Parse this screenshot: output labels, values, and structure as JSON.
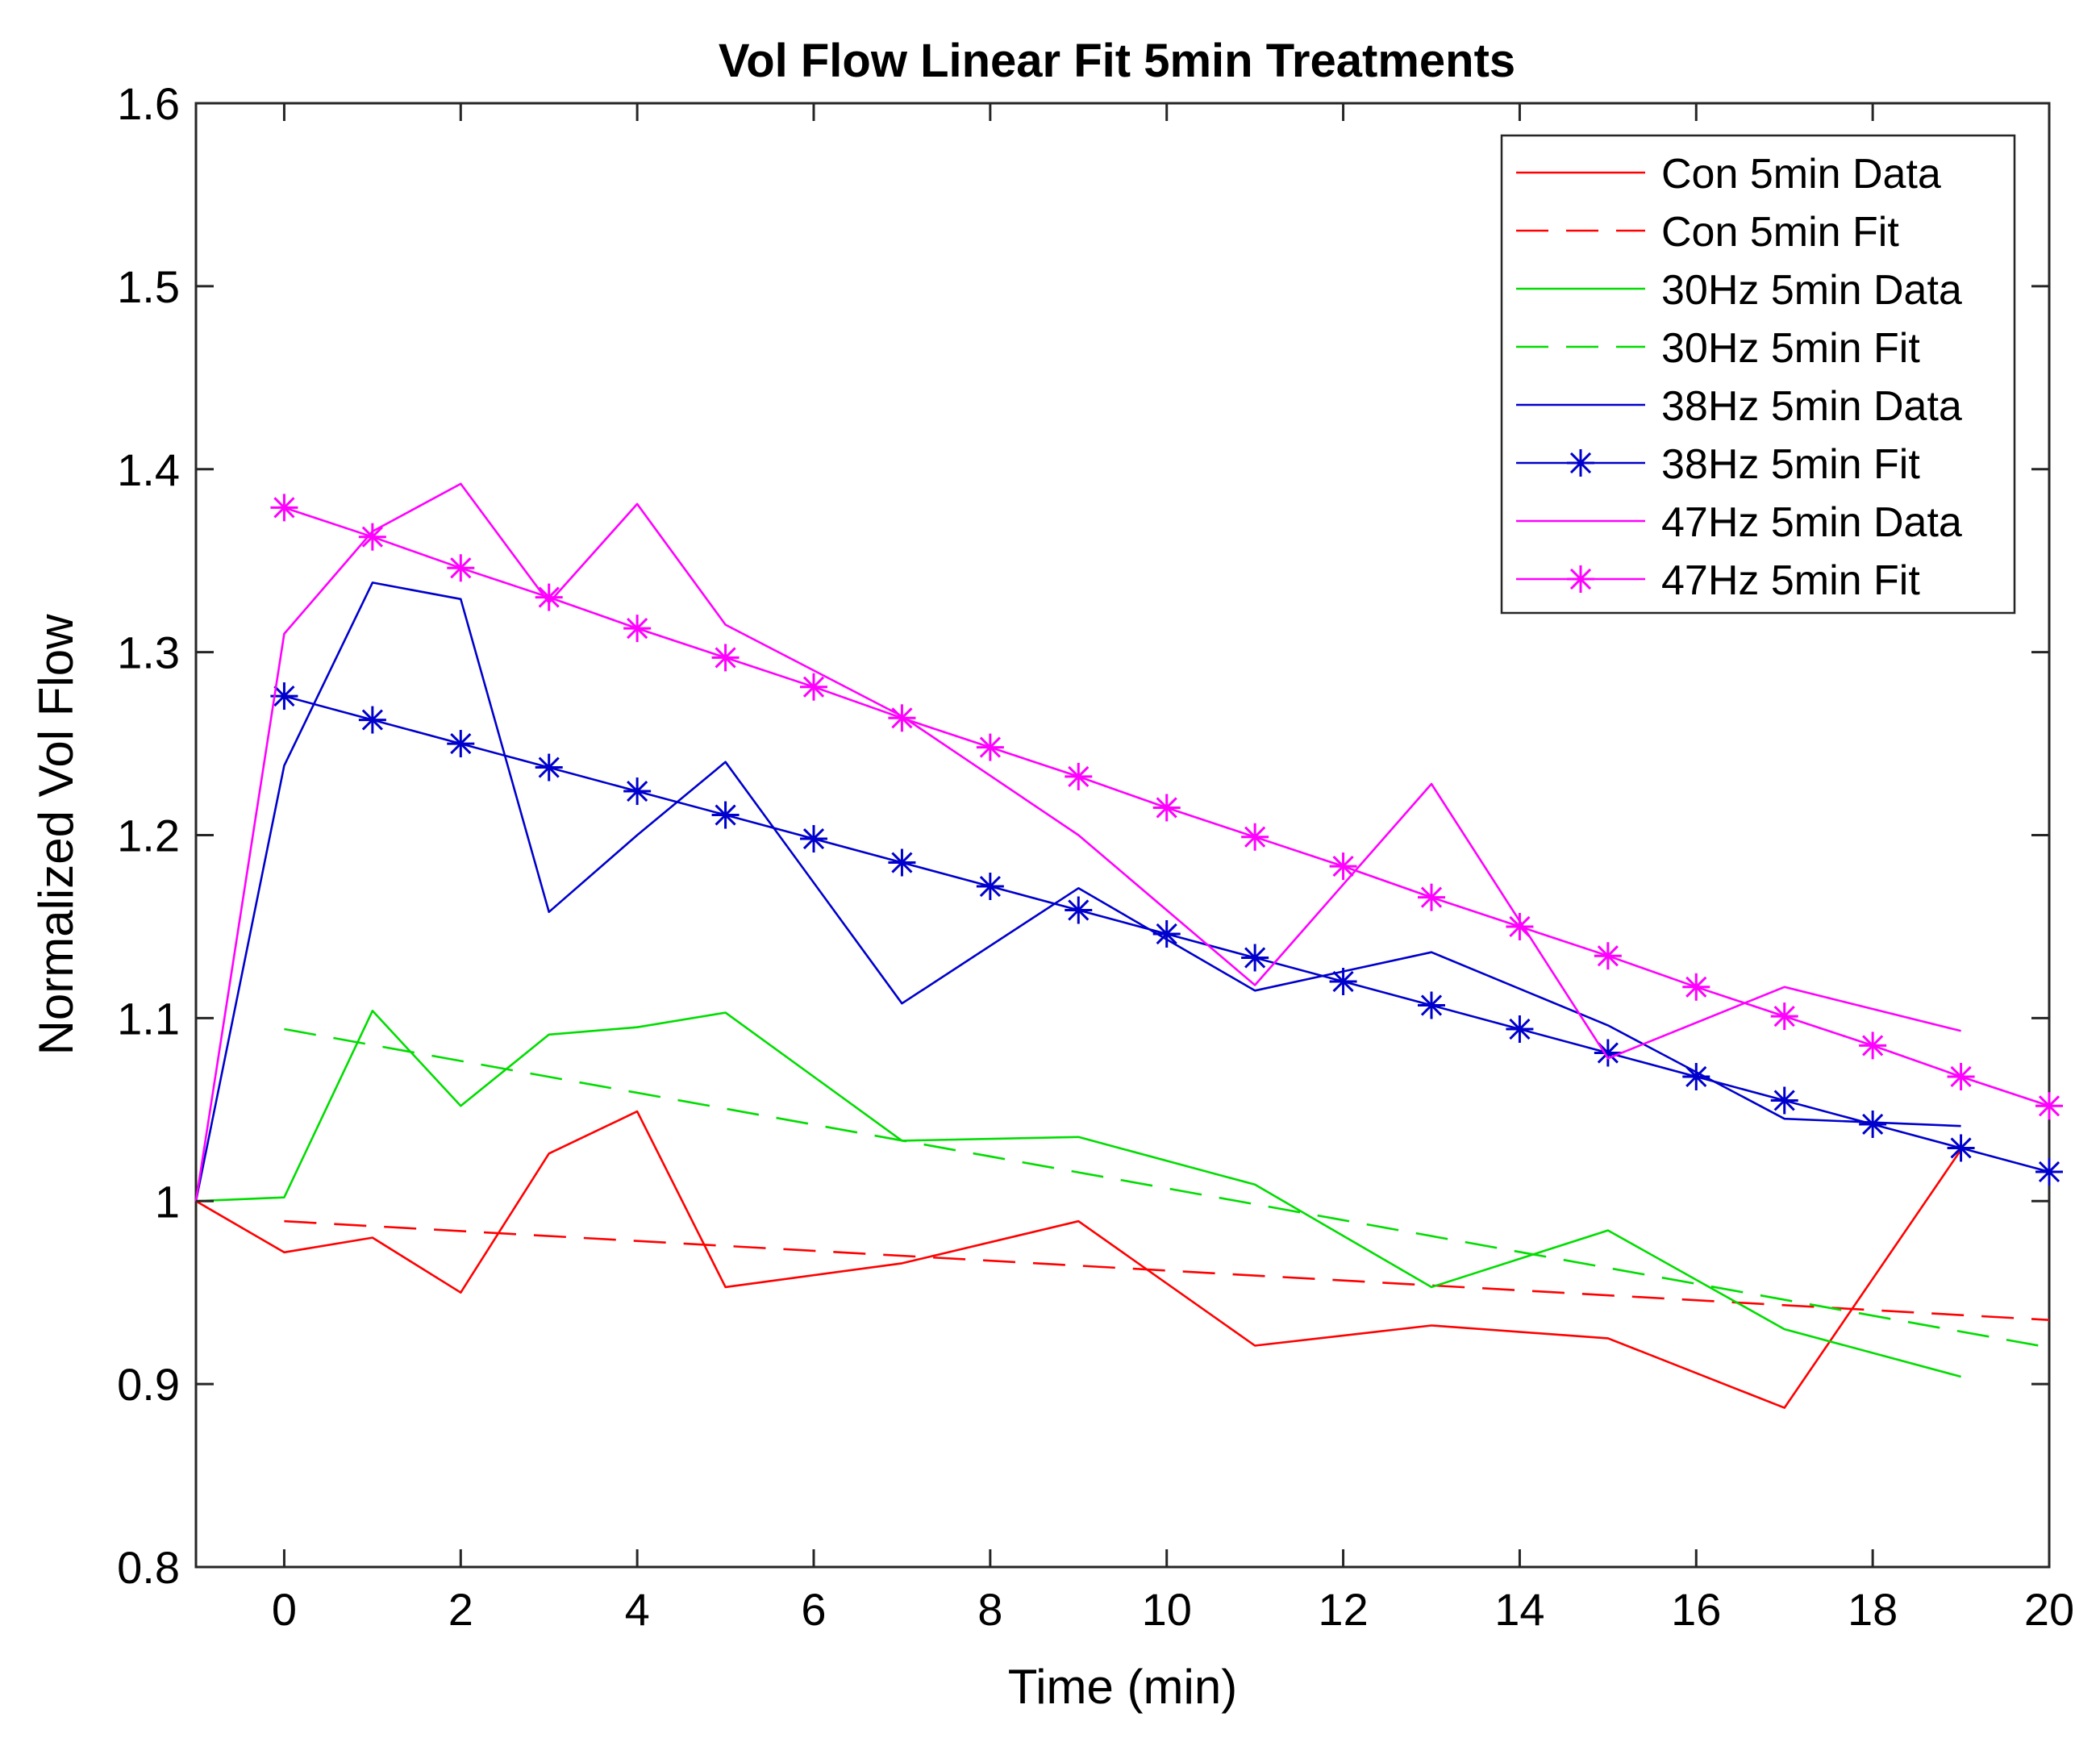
{
  "chart_data": {
    "type": "line",
    "title": "Vol Flow Linear Fit 5min Treatments",
    "xlabel": "Time (min)",
    "ylabel": "Normalized Vol Flow",
    "xlim": [
      -1,
      20
    ],
    "ylim": [
      0.8,
      1.6
    ],
    "xticks": [
      0,
      2,
      4,
      6,
      8,
      10,
      12,
      14,
      16,
      18,
      20
    ],
    "yticks": [
      0.8,
      0.9,
      1,
      1.1,
      1.2,
      1.3,
      1.4,
      1.5,
      1.6
    ],
    "xtick_labels": [
      "0",
      "2",
      "4",
      "6",
      "8",
      "10",
      "12",
      "14",
      "16",
      "18",
      "20"
    ],
    "ytick_labels": [
      "0.8",
      "0.9",
      "1",
      "1.1",
      "1.2",
      "1.3",
      "1.4",
      "1.5",
      "1.6"
    ],
    "grid": false,
    "legend_position": "top-right",
    "series": [
      {
        "name": "Con 5min Data",
        "color": "#ff0000",
        "style": "solid",
        "marker": "none",
        "x": [
          -1,
          0,
          1,
          2,
          3,
          4,
          5,
          7,
          9,
          11,
          13,
          15,
          17,
          19
        ],
        "y": [
          1.0,
          0.972,
          0.98,
          0.95,
          1.026,
          1.049,
          0.953,
          0.966,
          0.989,
          0.921,
          0.932,
          0.925,
          0.887,
          1.028
        ]
      },
      {
        "name": "Con 5min Fit",
        "color": "#ff0000",
        "style": "dashed",
        "marker": "none",
        "x": [
          0,
          20
        ],
        "y": [
          0.989,
          0.935
        ]
      },
      {
        "name": "30Hz 5min Data",
        "color": "#00dd00",
        "style": "solid",
        "marker": "none",
        "x": [
          -1,
          0,
          1,
          2,
          3,
          4,
          5,
          7,
          9,
          11,
          13,
          15,
          17,
          19
        ],
        "y": [
          1.0,
          1.002,
          1.104,
          1.052,
          1.091,
          1.095,
          1.103,
          1.033,
          1.035,
          1.009,
          0.953,
          0.984,
          0.93,
          0.904
        ]
      },
      {
        "name": "30Hz 5min Fit",
        "color": "#00dd00",
        "style": "dashed",
        "marker": "none",
        "x": [
          0,
          20
        ],
        "y": [
          1.094,
          0.92
        ]
      },
      {
        "name": "38Hz 5min Data",
        "color": "#0000cc",
        "style": "solid",
        "marker": "none",
        "x": [
          -1,
          0,
          1,
          2,
          3,
          4,
          5,
          7,
          9,
          11,
          13,
          15,
          17,
          19
        ],
        "y": [
          1.0,
          1.238,
          1.338,
          1.329,
          1.158,
          1.2,
          1.24,
          1.108,
          1.171,
          1.115,
          1.136,
          1.096,
          1.045,
          1.041
        ]
      },
      {
        "name": "38Hz 5min Fit",
        "color": "#0000cc",
        "style": "solid",
        "marker": "asterisk",
        "x": [
          0,
          1,
          2,
          3,
          4,
          5,
          6,
          7,
          8,
          9,
          10,
          11,
          12,
          13,
          14,
          15,
          16,
          17,
          18,
          19,
          20
        ],
        "y": [
          1.276,
          1.263,
          1.25,
          1.237,
          1.224,
          1.211,
          1.198,
          1.185,
          1.172,
          1.159,
          1.146,
          1.133,
          1.12,
          1.107,
          1.094,
          1.081,
          1.068,
          1.055,
          1.042,
          1.029,
          1.016
        ]
      },
      {
        "name": "47Hz 5min Data",
        "color": "#ff00ff",
        "style": "solid",
        "marker": "none",
        "x": [
          -1,
          0,
          1,
          2,
          3,
          4,
          5,
          7,
          9,
          11,
          13,
          15,
          17,
          19
        ],
        "y": [
          1.0,
          1.31,
          1.366,
          1.392,
          1.327,
          1.381,
          1.315,
          1.265,
          1.2,
          1.118,
          1.228,
          1.078,
          1.117,
          1.093
        ]
      },
      {
        "name": "47Hz 5min Fit",
        "color": "#ff00ff",
        "style": "solid",
        "marker": "asterisk",
        "x": [
          0,
          1,
          2,
          3,
          4,
          5,
          6,
          7,
          8,
          9,
          10,
          11,
          12,
          13,
          14,
          15,
          16,
          17,
          18,
          19,
          20
        ],
        "y": [
          1.379,
          1.363,
          1.346,
          1.33,
          1.313,
          1.297,
          1.281,
          1.264,
          1.248,
          1.232,
          1.215,
          1.199,
          1.183,
          1.166,
          1.15,
          1.134,
          1.117,
          1.101,
          1.085,
          1.068,
          1.052
        ]
      }
    ]
  }
}
